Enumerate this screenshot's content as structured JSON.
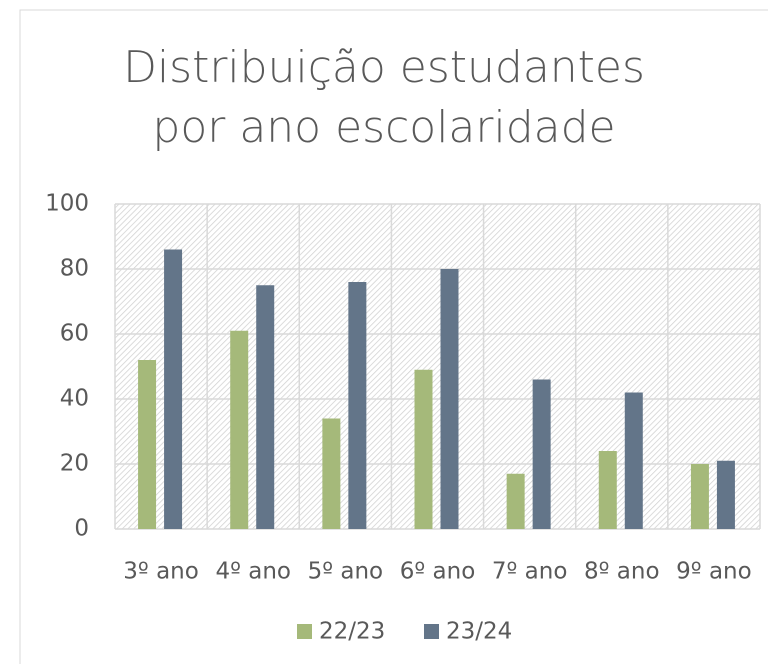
{
  "chart_data": {
    "type": "bar",
    "title": "Distribuição estudantes por ano escolaridade",
    "categories": [
      "3º ano",
      "4º ano",
      "5º ano",
      "6º ano",
      "7º ano",
      "8º ano",
      "9º ano"
    ],
    "series": [
      {
        "name": "22/23",
        "color": "#a5b97a",
        "values": [
          52,
          61,
          34,
          49,
          17,
          24,
          20
        ]
      },
      {
        "name": "23/24",
        "color": "#637589",
        "values": [
          86,
          75,
          76,
          80,
          46,
          42,
          21
        ]
      }
    ],
    "ylim": [
      0,
      100
    ],
    "yticks": [
      0,
      20,
      40,
      60,
      80,
      100
    ],
    "grid": true,
    "legend": "bottom"
  }
}
